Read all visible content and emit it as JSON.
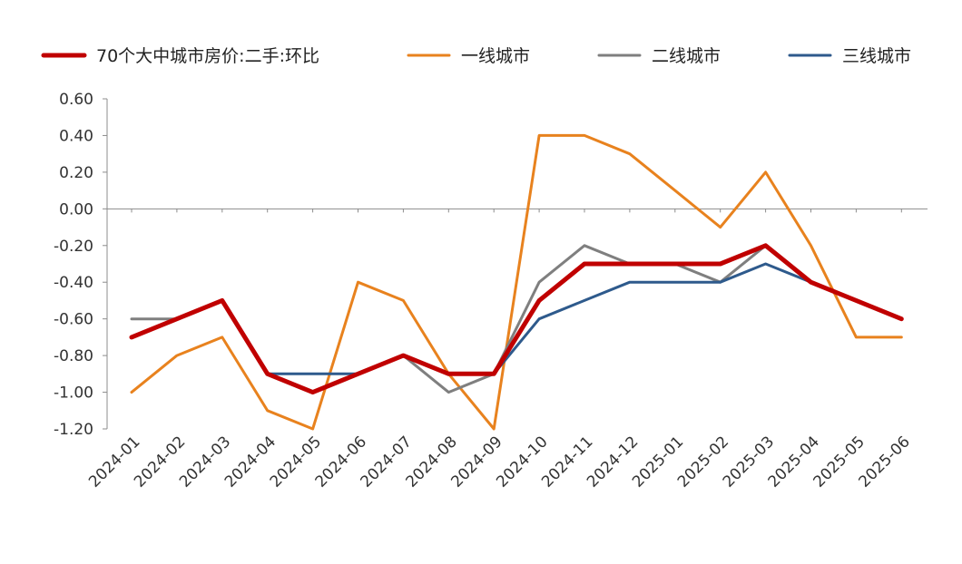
{
  "chart_data": {
    "type": "line",
    "categories": [
      "2024-01",
      "2024-02",
      "2024-03",
      "2024-04",
      "2024-05",
      "2024-06",
      "2024-07",
      "2024-08",
      "2024-09",
      "2024-10",
      "2024-11",
      "2024-12",
      "2025-01",
      "2025-02",
      "2025-03",
      "2025-04",
      "2025-05",
      "2025-06"
    ],
    "series": [
      {
        "name": "70个大中城市房价:二手:环比",
        "color": "#c00000",
        "values": [
          -0.7,
          -0.6,
          -0.5,
          -0.9,
          -1.0,
          -0.9,
          -0.8,
          -0.9,
          -0.9,
          -0.5,
          -0.3,
          -0.3,
          -0.3,
          -0.3,
          -0.2,
          -0.4,
          -0.5,
          -0.6
        ]
      },
      {
        "name": "一线城市",
        "color": "#e8821e",
        "values": [
          -1.0,
          -0.8,
          -0.7,
          -1.1,
          -1.2,
          -0.4,
          -0.5,
          -0.9,
          -1.2,
          0.4,
          0.4,
          0.3,
          0.1,
          -0.1,
          0.2,
          -0.2,
          -0.7,
          -0.7
        ]
      },
      {
        "name": "二线城市",
        "color": "#7f7f7f",
        "values": [
          -0.6,
          -0.6,
          -0.5,
          -0.9,
          -1.0,
          -0.9,
          -0.8,
          -1.0,
          -0.9,
          -0.4,
          -0.2,
          -0.3,
          -0.3,
          -0.4,
          -0.2,
          -0.4,
          -0.5,
          -0.6
        ]
      },
      {
        "name": "三线城市",
        "color": "#2e5a8c",
        "values": [
          -0.7,
          -0.6,
          -0.5,
          -0.9,
          -0.9,
          -0.9,
          -0.8,
          -0.9,
          -0.9,
          -0.6,
          -0.5,
          -0.4,
          -0.4,
          -0.4,
          -0.3,
          -0.4,
          -0.5,
          -0.6
        ]
      }
    ],
    "yticks": [
      "0.60",
      "0.40",
      "0.20",
      "0.00",
      "-0.20",
      "-0.40",
      "-0.60",
      "-0.80",
      "-1.00",
      "-1.20"
    ],
    "ylim": [
      -1.2,
      0.6
    ],
    "legend_position": "top",
    "grid": false
  }
}
